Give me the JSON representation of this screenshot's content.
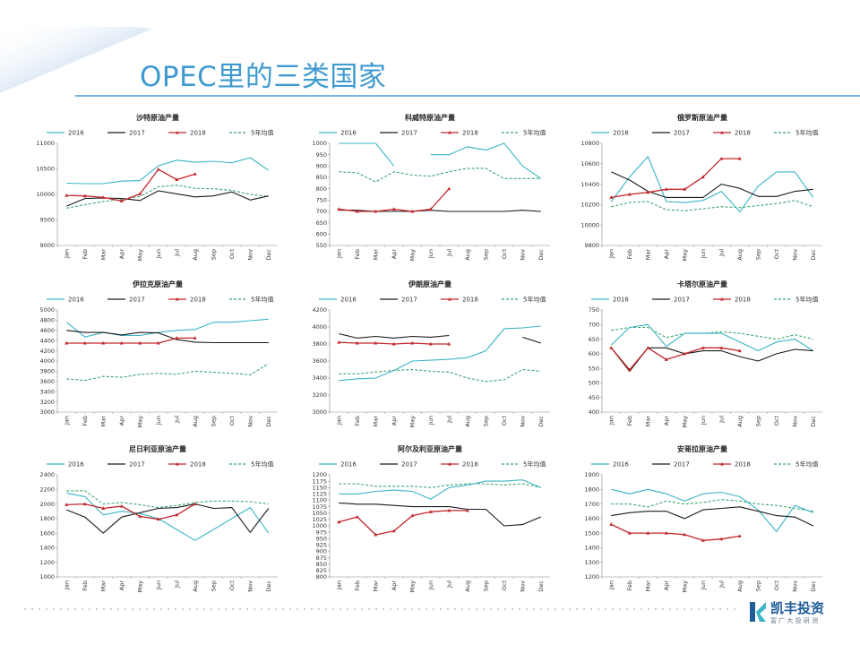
{
  "page": {
    "title": "OPEC里的三类国家",
    "logo_text": "凯丰投资",
    "logo_sub": "富 广 大 投 研 测"
  },
  "colors": {
    "s2016": "#3ab4c6",
    "s2017": "#1a1a1a",
    "s2018": "#c3272b",
    "avg5": "#3aa56b",
    "corner": "#6fa3d6"
  },
  "legend": [
    "2016",
    "2017",
    "2018",
    "5年均值"
  ],
  "months": [
    "Jan",
    "Feb",
    "Mar",
    "Apr",
    "May",
    "Jun",
    "Jul",
    "Aug",
    "Sep",
    "Oct",
    "Nov",
    "Dec"
  ],
  "chart_data": [
    {
      "type": "line",
      "title": "沙特原油产量",
      "ylim": [
        9000,
        11000
      ],
      "yticks": [
        9000,
        9500,
        10000,
        10500,
        11000
      ],
      "series": [
        {
          "name": "2016",
          "values": [
            10220,
            10210,
            10210,
            10260,
            10270,
            10560,
            10670,
            10630,
            10650,
            10620,
            10720,
            10470
          ]
        },
        {
          "name": "2017",
          "values": [
            9770,
            9920,
            9930,
            9920,
            9880,
            10070,
            10010,
            9950,
            9970,
            10050,
            9890,
            9970
          ]
        },
        {
          "name": "2018",
          "values": [
            9980,
            9970,
            9940,
            9870,
            10010,
            10490,
            10290,
            10400,
            null,
            null,
            null,
            null
          ]
        },
        {
          "name": "5年均值",
          "values": [
            9730,
            9800,
            9860,
            9900,
            9960,
            10150,
            10180,
            10120,
            10110,
            10080,
            10000,
            9960
          ]
        }
      ]
    },
    {
      "type": "line",
      "title": "科威特原油产量",
      "ylim": [
        550,
        1000
      ],
      "yticks": [
        550,
        600,
        650,
        700,
        750,
        800,
        850,
        900,
        950,
        1000
      ],
      "series": [
        {
          "name": "2016",
          "values": [
            1000,
            1000,
            1000,
            900,
            null,
            950,
            950,
            985,
            970,
            1000,
            900,
            845
          ]
        },
        {
          "name": "2017",
          "values": [
            705,
            705,
            700,
            700,
            700,
            705,
            700,
            700,
            700,
            700,
            705,
            700
          ]
        },
        {
          "name": "2018",
          "values": [
            710,
            700,
            700,
            710,
            700,
            710,
            800,
            null,
            null,
            null,
            null,
            null
          ]
        },
        {
          "name": "5年均值",
          "values": [
            875,
            870,
            830,
            875,
            860,
            855,
            875,
            890,
            890,
            845,
            845,
            845
          ]
        }
      ]
    },
    {
      "type": "line",
      "title": "俄罗斯原油产量",
      "ylim": [
        9800,
        10800
      ],
      "yticks": [
        9800,
        10000,
        10200,
        10400,
        10600,
        10800
      ],
      "series": [
        {
          "name": "2016",
          "values": [
            10230,
            10470,
            10670,
            10230,
            10220,
            10240,
            10330,
            10130,
            10380,
            10520,
            10520,
            10270
          ]
        },
        {
          "name": "2017",
          "values": [
            10520,
            10440,
            10330,
            10270,
            10270,
            10270,
            10400,
            10360,
            10280,
            10280,
            10330,
            10350
          ]
        },
        {
          "name": "2018",
          "values": [
            10270,
            10300,
            10320,
            10350,
            10350,
            10470,
            10650,
            10650,
            null,
            null,
            null,
            null
          ]
        },
        {
          "name": "5年均值",
          "values": [
            10180,
            10220,
            10230,
            10150,
            10140,
            10160,
            10180,
            10170,
            10190,
            10210,
            10240,
            10180
          ]
        }
      ]
    },
    {
      "type": "line",
      "title": "伊拉克原油产量",
      "ylim": [
        3000,
        5000
      ],
      "yticks": [
        3000,
        3200,
        3400,
        3600,
        3800,
        4000,
        4200,
        4400,
        4600,
        4800,
        5000
      ],
      "series": [
        {
          "name": "2016",
          "values": [
            4760,
            4470,
            4560,
            4500,
            4500,
            4560,
            4600,
            4620,
            4760,
            4760,
            4790,
            4820
          ]
        },
        {
          "name": "2017",
          "values": [
            4600,
            4560,
            4560,
            4510,
            4560,
            4550,
            4420,
            4370,
            4360,
            4360,
            4360,
            4360
          ]
        },
        {
          "name": "2018",
          "values": [
            4350,
            4350,
            4350,
            4350,
            4350,
            4350,
            4450,
            4450,
            null,
            null,
            null,
            null
          ]
        },
        {
          "name": "5年均值",
          "values": [
            3650,
            3620,
            3700,
            3680,
            3740,
            3760,
            3740,
            3800,
            3780,
            3760,
            3730,
            3950
          ]
        }
      ]
    },
    {
      "type": "line",
      "title": "伊朗原油产量",
      "ylim": [
        3000,
        4200
      ],
      "yticks": [
        3000,
        3200,
        3400,
        3600,
        3800,
        4000,
        4200
      ],
      "series": [
        {
          "name": "2016",
          "values": [
            3370,
            3390,
            3400,
            3490,
            3600,
            3610,
            3620,
            3640,
            3720,
            3980,
            3990,
            4010
          ]
        },
        {
          "name": "2017",
          "values": [
            3920,
            3870,
            3890,
            3870,
            3890,
            3880,
            3900,
            null,
            null,
            null,
            3880,
            3810
          ]
        },
        {
          "name": "2018",
          "values": [
            3820,
            3810,
            3810,
            3800,
            3810,
            3800,
            3800,
            null,
            null,
            null,
            null,
            null
          ]
        },
        {
          "name": "5年均值",
          "values": [
            3450,
            3450,
            3470,
            3490,
            3500,
            3480,
            3470,
            3400,
            3360,
            3380,
            3500,
            3480
          ]
        }
      ]
    },
    {
      "type": "line",
      "title": "卡塔尔原油产量",
      "ylim": [
        400,
        750
      ],
      "yticks": [
        400,
        450,
        500,
        550,
        600,
        650,
        700,
        750
      ],
      "series": [
        {
          "name": "2016",
          "values": [
            630,
            690,
            700,
            625,
            670,
            670,
            670,
            640,
            610,
            640,
            650,
            610
          ]
        },
        {
          "name": "2017",
          "values": [
            620,
            540,
            620,
            620,
            600,
            610,
            610,
            590,
            575,
            600,
            615,
            610
          ]
        },
        {
          "name": "2018",
          "values": [
            620,
            545,
            620,
            580,
            600,
            620,
            620,
            610,
            null,
            null,
            null,
            null
          ]
        },
        {
          "name": "5年均值",
          "values": [
            680,
            690,
            690,
            655,
            670,
            670,
            675,
            670,
            660,
            650,
            665,
            650
          ]
        }
      ]
    },
    {
      "type": "line",
      "title": "尼日利亚原油产量",
      "ylim": [
        1000,
        2400
      ],
      "yticks": [
        1000,
        1200,
        1400,
        1600,
        1800,
        2000,
        2200,
        2400
      ],
      "series": [
        {
          "name": "2016",
          "values": [
            2150,
            2100,
            1850,
            1900,
            1870,
            1800,
            1650,
            1500,
            1650,
            1800,
            1950,
            1600
          ]
        },
        {
          "name": "2017",
          "values": [
            1920,
            1820,
            1600,
            1820,
            1880,
            1940,
            1950,
            2000,
            1940,
            1950,
            1610,
            1940
          ]
        },
        {
          "name": "2018",
          "values": [
            1990,
            2000,
            1940,
            1970,
            1830,
            1790,
            1850,
            2000,
            null,
            null,
            null,
            null
          ]
        },
        {
          "name": "5年均值",
          "values": [
            2180,
            2180,
            2000,
            2020,
            1990,
            1950,
            1980,
            2020,
            2040,
            2040,
            2030,
            2000
          ]
        }
      ]
    },
    {
      "type": "line",
      "title": "阿尔及利亚原油产量",
      "ylim": [
        800,
        1200
      ],
      "yticks": [
        800,
        825,
        850,
        875,
        900,
        925,
        950,
        975,
        1000,
        1025,
        1050,
        1075,
        1100,
        1125,
        1150,
        1175,
        1200
      ],
      "series": [
        {
          "name": "2016",
          "values": [
            1125,
            1125,
            1135,
            1140,
            1135,
            1105,
            1150,
            1160,
            1175,
            1175,
            1180,
            1150
          ]
        },
        {
          "name": "2017",
          "values": [
            1090,
            1085,
            1085,
            1080,
            1075,
            1075,
            1075,
            1065,
            1065,
            1000,
            1005,
            1035
          ]
        },
        {
          "name": "2018",
          "values": [
            1015,
            1035,
            965,
            980,
            1040,
            1055,
            1060,
            1060,
            null,
            null,
            null,
            null
          ]
        },
        {
          "name": "5年均值",
          "values": [
            1165,
            1165,
            1155,
            1155,
            1155,
            1150,
            1160,
            1165,
            1165,
            1160,
            1165,
            1150
          ]
        }
      ]
    },
    {
      "type": "line",
      "title": "安哥拉原油产量",
      "ylim": [
        1200,
        1900
      ],
      "yticks": [
        1200,
        1300,
        1400,
        1500,
        1600,
        1700,
        1800,
        1900
      ],
      "series": [
        {
          "name": "2016",
          "values": [
            1800,
            1770,
            1800,
            1770,
            1720,
            1770,
            1780,
            1750,
            1660,
            1510,
            1690,
            1640
          ]
        },
        {
          "name": "2017",
          "values": [
            1620,
            1640,
            1650,
            1650,
            1600,
            1660,
            1670,
            1680,
            1650,
            1620,
            1610,
            1550
          ]
        },
        {
          "name": "2018",
          "values": [
            1560,
            1500,
            1500,
            1500,
            1490,
            1450,
            1460,
            1480,
            null,
            null,
            null,
            null
          ]
        },
        {
          "name": "5年均值",
          "values": [
            1700,
            1700,
            1680,
            1720,
            1700,
            1710,
            1730,
            1720,
            1700,
            1690,
            1670,
            1650
          ]
        }
      ]
    }
  ]
}
